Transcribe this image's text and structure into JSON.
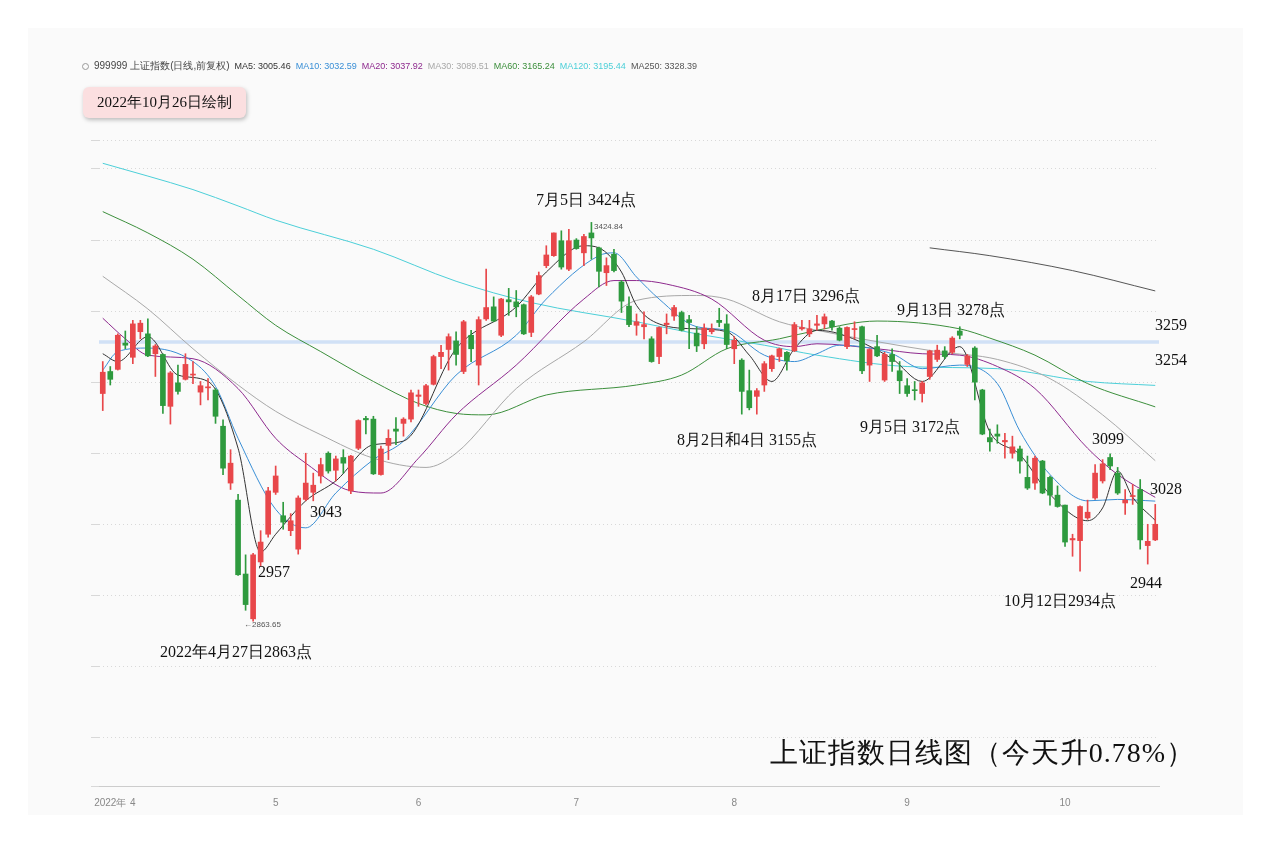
{
  "chart_data": {
    "type": "candlestick",
    "title": "上证指数日线图（今天升0.78%）",
    "subtitle": "999999 上证指数(日线,前复权)",
    "categories": [
      null,
      "2022年",
      null,
      null,
      "4",
      null,
      null,
      null,
      null,
      null,
      null,
      null,
      null,
      null,
      null,
      null,
      null,
      null,
      null,
      null,
      null,
      null,
      null,
      "5",
      null,
      null,
      null,
      null,
      null,
      null,
      null,
      null,
      null,
      null,
      null,
      null,
      null,
      null,
      null,
      null,
      null,
      null,
      "6",
      null,
      null,
      null,
      null,
      null,
      null,
      null,
      null,
      null,
      null,
      null,
      null,
      null,
      null,
      null,
      null,
      null,
      null,
      null,
      null,
      "7",
      null,
      null,
      null,
      null,
      null,
      null,
      null,
      null,
      null,
      null,
      null,
      null,
      null,
      null,
      null,
      null,
      null,
      null,
      null,
      null,
      "8",
      null,
      null,
      null,
      null,
      null,
      null,
      null,
      null,
      null,
      null,
      null,
      null,
      null,
      null,
      null,
      null,
      null,
      null,
      null,
      null,
      null,
      null,
      "9",
      null,
      null,
      null,
      null,
      null,
      null,
      null,
      null,
      null,
      null,
      null,
      null,
      null,
      null,
      null,
      null,
      null,
      null,
      null,
      null,
      "10",
      null,
      null,
      null,
      null,
      null,
      null,
      null,
      null,
      null,
      null,
      null,
      null
    ],
    "ohlc": [
      [
        3184,
        3229,
        3160,
        3214
      ],
      [
        3215,
        3222,
        3196,
        3204
      ],
      [
        3218,
        3268,
        3217,
        3266
      ],
      [
        3255,
        3272,
        3247,
        3252
      ],
      [
        3235,
        3287,
        3226,
        3282
      ],
      [
        3271,
        3287,
        3261,
        3283
      ],
      [
        3268,
        3289,
        3236,
        3237
      ],
      [
        3240,
        3253,
        3208,
        3251
      ],
      [
        3239,
        3240,
        3156,
        3167
      ],
      [
        3166,
        3215,
        3141,
        3213
      ],
      [
        3199,
        3224,
        3183,
        3187
      ],
      [
        3204,
        3240,
        3203,
        3225
      ],
      [
        3210,
        3229,
        3198,
        3211
      ],
      [
        3186,
        3201,
        3168,
        3195
      ],
      [
        3192,
        3205,
        3175,
        3193
      ],
      [
        3189,
        3191,
        3142,
        3152
      ],
      [
        3138,
        3147,
        3070,
        3079
      ],
      [
        3058,
        3105,
        3049,
        3086
      ],
      [
        3034,
        3042,
        2928,
        2929
      ],
      [
        2930,
        2957,
        2879,
        2887
      ],
      [
        2867,
        2959,
        2863.65,
        2957
      ],
      [
        2947,
        2991,
        2941,
        2975
      ],
      [
        2986,
        3052,
        2982,
        3047
      ],
      [
        3045,
        3082,
        3042,
        3068
      ],
      [
        3012,
        3031,
        2993,
        3003
      ],
      [
        2991,
        3015,
        2984,
        3005
      ],
      [
        2965,
        3040,
        2958,
        3037
      ],
      [
        3035,
        3100,
        3033,
        3058
      ],
      [
        3045,
        3072,
        3033,
        3055
      ],
      [
        3068,
        3093,
        3058,
        3084
      ],
      [
        3100,
        3102,
        3072,
        3075
      ],
      [
        3076,
        3096,
        3061,
        3092
      ],
      [
        3094,
        3105,
        3072,
        3086
      ],
      [
        3047,
        3097,
        3043,
        3096
      ],
      [
        3107,
        3147,
        3105,
        3146
      ],
      [
        3149,
        3152,
        3127,
        3147
      ],
      [
        3148,
        3152,
        3070,
        3071
      ],
      [
        3070,
        3110,
        3069,
        3106
      ],
      [
        3111,
        3133,
        3091,
        3121
      ],
      [
        3134,
        3150,
        3112,
        3131
      ],
      [
        3142,
        3150,
        3124,
        3148
      ],
      [
        3148,
        3189,
        3144,
        3185
      ],
      [
        3180,
        3189,
        3166,
        3182
      ],
      [
        3170,
        3197,
        3168,
        3195
      ],
      [
        3197,
        3238,
        3196,
        3236
      ],
      [
        3236,
        3252,
        3219,
        3242
      ],
      [
        3246,
        3268,
        3217,
        3264
      ],
      [
        3258,
        3271,
        3224,
        3239
      ],
      [
        3215,
        3287,
        3212,
        3285
      ],
      [
        3266,
        3273,
        3229,
        3247
      ],
      [
        3224,
        3292,
        3196,
        3288
      ],
      [
        3289,
        3359,
        3287,
        3305
      ],
      [
        3306,
        3320,
        3285,
        3286
      ],
      [
        3266,
        3318,
        3264,
        3317
      ],
      [
        3316,
        3332,
        3294,
        3313
      ],
      [
        3313,
        3329,
        3292,
        3306
      ],
      [
        3309,
        3310,
        3267,
        3268
      ],
      [
        3270,
        3322,
        3264,
        3320
      ],
      [
        3324,
        3355,
        3323,
        3350
      ],
      [
        3364,
        3392,
        3361,
        3379
      ],
      [
        3378,
        3410,
        3377,
        3410
      ],
      [
        3399,
        3413,
        3359,
        3362
      ],
      [
        3359,
        3415,
        3357,
        3399
      ],
      [
        3400,
        3402,
        3387,
        3388
      ],
      [
        3382,
        3408,
        3364,
        3405
      ],
      [
        3410,
        3424.84,
        3373,
        3403
      ],
      [
        3389,
        3390,
        3334,
        3356
      ],
      [
        3354,
        3375,
        3336,
        3364
      ],
      [
        3380,
        3387,
        3355,
        3357
      ],
      [
        3341,
        3343,
        3298,
        3314
      ],
      [
        3307,
        3320,
        3278,
        3281
      ],
      [
        3280,
        3296,
        3266,
        3285
      ],
      [
        3278,
        3299,
        3261,
        3281
      ],
      [
        3261,
        3264,
        3228,
        3229
      ],
      [
        3236,
        3278,
        3226,
        3277
      ],
      [
        3281,
        3296,
        3268,
        3283
      ],
      [
        3293,
        3308,
        3287,
        3305
      ],
      [
        3298,
        3300,
        3272,
        3273
      ],
      [
        3288,
        3294,
        3247,
        3284
      ],
      [
        3269,
        3278,
        3243,
        3251
      ],
      [
        3254,
        3282,
        3247,
        3276
      ],
      [
        3271,
        3282,
        3268,
        3275
      ],
      [
        3287,
        3304,
        3278,
        3284
      ],
      [
        3282,
        3295,
        3247,
        3253
      ],
      [
        3247,
        3264,
        3226,
        3259
      ],
      [
        3231,
        3233,
        3155,
        3187
      ],
      [
        3188,
        3217,
        3161,
        3164
      ],
      [
        3180,
        3191,
        3155,
        3188
      ],
      [
        3196,
        3229,
        3187,
        3226
      ],
      [
        3219,
        3238,
        3215,
        3237
      ],
      [
        3236,
        3248,
        3229,
        3247
      ],
      [
        3242,
        3243,
        3217,
        3230
      ],
      [
        3244,
        3284,
        3243,
        3281
      ],
      [
        3275,
        3287,
        3273,
        3277
      ],
      [
        3268,
        3287,
        3264,
        3275
      ],
      [
        3280,
        3294,
        3273,
        3282
      ],
      [
        3282,
        3296,
        3275,
        3292
      ],
      [
        3286,
        3287,
        3273,
        3278
      ],
      [
        3276,
        3278,
        3258,
        3259
      ],
      [
        3250,
        3278,
        3247,
        3277
      ],
      [
        3274,
        3285,
        3261,
        3275
      ],
      [
        3278,
        3279,
        3212,
        3216
      ],
      [
        3224,
        3247,
        3201,
        3246
      ],
      [
        3250,
        3266,
        3236,
        3237
      ],
      [
        3203,
        3242,
        3201,
        3239
      ],
      [
        3239,
        3247,
        3215,
        3229
      ],
      [
        3216,
        3229,
        3184,
        3202
      ],
      [
        3195,
        3205,
        3180,
        3184
      ],
      [
        3189,
        3201,
        3175,
        3188
      ],
      [
        3184,
        3201,
        3172,
        3199
      ],
      [
        3208,
        3245,
        3204,
        3244
      ],
      [
        3232,
        3252,
        3229,
        3245
      ],
      [
        3244,
        3250,
        3233,
        3236
      ],
      [
        3242,
        3264,
        3240,
        3262
      ],
      [
        3272,
        3278,
        3261,
        3266
      ],
      [
        3225,
        3239,
        3222,
        3237
      ],
      [
        3248,
        3250,
        3175,
        3200
      ],
      [
        3189,
        3190,
        3126,
        3127
      ],
      [
        3122,
        3134,
        3103,
        3116
      ],
      [
        3127,
        3140,
        3114,
        3124
      ],
      [
        3116,
        3128,
        3093,
        3118
      ],
      [
        3100,
        3124,
        3093,
        3109
      ],
      [
        3106,
        3110,
        3072,
        3089
      ],
      [
        3066,
        3096,
        3049,
        3051
      ],
      [
        3058,
        3096,
        3049,
        3093
      ],
      [
        3089,
        3090,
        3043,
        3044
      ],
      [
        3066,
        3068,
        3027,
        3041
      ],
      [
        3041,
        3054,
        3024,
        3025
      ],
      [
        3027,
        3027,
        2969,
        2975
      ],
      [
        2978,
        2986,
        2955,
        2980
      ],
      [
        2977,
        3026,
        2934,
        3025
      ],
      [
        3009,
        3034,
        3007,
        3017
      ],
      [
        3037,
        3084,
        3035,
        3072
      ],
      [
        3061,
        3091,
        3058,
        3085
      ],
      [
        3094,
        3099,
        3077,
        3082
      ],
      [
        3072,
        3080,
        3042,
        3044
      ],
      [
        3030,
        3049,
        3014,
        3034
      ],
      [
        3039,
        3056,
        3028,
        3040
      ],
      [
        3049,
        3063,
        2965,
        2978
      ],
      [
        2970,
        3000,
        2944,
        2976
      ],
      [
        2978,
        3028,
        2977,
        3000
      ]
    ],
    "series": [
      {
        "name": "MA5: 3005.46",
        "type": "line",
        "color": "#333333",
        "values": [
          3240,
          null,
          3229,
          null,
          null,
          null,
          3264,
          null,
          null,
          null,
          3210,
          null,
          null,
          null,
          3201,
          null,
          null,
          null,
          3107,
          null,
          null,
          2961,
          null,
          2986,
          null,
          null,
          null,
          3033,
          null,
          null,
          null,
          3061,
          null,
          null,
          null,
          null,
          3112,
          null,
          null,
          null,
          3117,
          null,
          null,
          null,
          null,
          null,
          null,
          3247,
          null,
          null,
          null,
          null,
          null,
          null,
          null,
          3306,
          null,
          null,
          null,
          3355,
          null,
          null,
          null,
          null,
          3392,
          null,
          3389,
          null,
          null,
          3355,
          null,
          3308,
          null,
          null,
          3282,
          null,
          null,
          null,
          null,
          3275,
          null,
          null,
          null,
          3271,
          null,
          null,
          3238,
          null,
          null,
          3201,
          null,
          null,
          3247,
          null,
          null,
          3273,
          null,
          null,
          3268,
          null,
          null,
          null,
          null,
          null,
          null,
          3233,
          null,
          null,
          null,
          3201,
          null,
          null,
          null,
          null,
          3250,
          null,
          null,
          null,
          3130,
          null,
          null,
          null,
          3098,
          null,
          null,
          null,
          3042,
          null,
          null,
          null,
          null,
          3005,
          null,
          3023,
          null,
          3075,
          null,
          3038,
          null,
          null,
          3005.46
        ]
      },
      {
        "name": "MA10: 3032.59",
        "type": "line",
        "color": "#3a8fd6",
        "values": [
          3217,
          null,
          3243,
          null,
          null,
          null,
          3248,
          null,
          null,
          null,
          null,
          null,
          3229,
          null,
          null,
          3194,
          null,
          null,
          3121,
          null,
          null,
          null,
          null,
          3021,
          null,
          null,
          null,
          2995,
          null,
          null,
          null,
          3044,
          null,
          null,
          null,
          null,
          3091,
          null,
          null,
          null,
          3117,
          null,
          null,
          null,
          null,
          null,
          null,
          3210,
          null,
          null,
          null,
          null,
          null,
          null,
          null,
          3266,
          null,
          null,
          null,
          3317,
          null,
          null,
          null,
          null,
          null,
          null,
          3378,
          null,
          3382,
          null,
          null,
          3348,
          null,
          null,
          3317,
          null,
          null,
          null,
          null,
          3278,
          null,
          null,
          null,
          3273,
          null,
          null,
          null,
          null,
          3238,
          null,
          null,
          null,
          3229,
          null,
          null,
          3240,
          null,
          null,
          3252,
          null,
          null,
          null,
          null,
          null,
          null,
          3240,
          null,
          null,
          null,
          3219,
          null,
          null,
          null,
          null,
          3224,
          null,
          null,
          null,
          null,
          3198,
          null,
          null,
          3131,
          null,
          null,
          null,
          3070,
          null,
          null,
          null,
          null,
          3033,
          null,
          null,
          null,
          3035,
          null,
          null,
          null,
          null,
          3032.59
        ]
      },
      {
        "name": "MA20: 3037.92",
        "type": "line",
        "color": "#8e2a8e",
        "values": [
          3290,
          null,
          null,
          3261,
          null,
          null,
          3238,
          null,
          null,
          null,
          null,
          null,
          3233,
          null,
          null,
          null,
          null,
          null,
          3191,
          null,
          null,
          null,
          null,
          3121,
          null,
          null,
          null,
          3086,
          null,
          null,
          null,
          null,
          null,
          3047,
          null,
          null,
          null,
          3044,
          null,
          null,
          null,
          null,
          3093,
          null,
          null,
          null,
          null,
          3154,
          null,
          null,
          null,
          null,
          null,
          null,
          null,
          3224,
          null,
          null,
          null,
          null,
          null,
          null,
          null,
          null,
          3317,
          null,
          null,
          null,
          3343,
          null,
          null,
          3343,
          null,
          null,
          null,
          3338,
          null,
          null,
          null,
          null,
          null,
          3317,
          null,
          null,
          null,
          null,
          null,
          null,
          3259,
          null,
          null,
          null,
          3250,
          null,
          null,
          3254,
          null,
          null,
          null,
          null,
          null,
          null,
          null,
          3247,
          null,
          null,
          null,
          null,
          null,
          3240,
          null,
          null,
          null,
          null,
          3238,
          null,
          null,
          null,
          null,
          3222,
          null,
          null,
          null,
          null,
          3191,
          null,
          null,
          null,
          null,
          null,
          null,
          3107,
          null,
          null,
          null,
          3070,
          null,
          null,
          null,
          null,
          3037.92
        ]
      },
      {
        "name": "MA30: 3089.51",
        "type": "line",
        "color": "#a8a8a8",
        "values": [
          3349,
          null,
          null,
          null,
          null,
          null,
          3303,
          null,
          null,
          null,
          null,
          null,
          3247,
          null,
          null,
          null,
          null,
          null,
          3196,
          null,
          null,
          null,
          null,
          3159,
          null,
          null,
          null,
          null,
          null,
          3126,
          null,
          null,
          null,
          null,
          null,
          null,
          3093,
          null,
          null,
          null,
          null,
          null,
          null,
          3080,
          null,
          null,
          null,
          3100,
          null,
          null,
          null,
          null,
          null,
          null,
          null,
          3191,
          null,
          null,
          null,
          null,
          null,
          null,
          null,
          null,
          3257,
          null,
          null,
          null,
          null,
          null,
          null,
          3315,
          null,
          null,
          null,
          null,
          null,
          null,
          null,
          3322,
          null,
          null,
          null,
          3317,
          null,
          null,
          null,
          null,
          null,
          null,
          3285,
          null,
          null,
          null,
          null,
          3273,
          null,
          null,
          null,
          null,
          null,
          null,
          null,
          3257,
          null,
          null,
          null,
          null,
          null,
          null,
          null,
          3243,
          null,
          null,
          null,
          null,
          null,
          null,
          null,
          3232,
          null,
          null,
          null,
          null,
          null,
          null,
          3205,
          null,
          null,
          null,
          null,
          null,
          null,
          3154,
          null,
          null,
          null,
          null,
          null,
          null,
          3089.51
        ]
      },
      {
        "name": "MA60: 3165.24",
        "type": "line",
        "color": "#3c8f3c",
        "values": [
          3440,
          null,
          null,
          null,
          null,
          null,
          3410,
          null,
          null,
          null,
          null,
          null,
          3373,
          null,
          null,
          null,
          null,
          null,
          3322,
          null,
          null,
          null,
          null,
          3280,
          null,
          null,
          null,
          null,
          null,
          3243,
          null,
          null,
          null,
          null,
          null,
          null,
          3201,
          null,
          null,
          null,
          null,
          null,
          3170,
          null,
          null,
          null,
          null,
          3156,
          null,
          null,
          null,
          3154,
          null,
          null,
          null,
          null,
          null,
          null,
          null,
          3182,
          null,
          null,
          null,
          null,
          null,
          null,
          null,
          null,
          null,
          null,
          null,
          3196,
          null,
          null,
          null,
          null,
          null,
          3210,
          null,
          null,
          null,
          null,
          null,
          3247,
          null,
          null,
          null,
          null,
          null,
          null,
          3261,
          null,
          null,
          null,
          null,
          3273,
          null,
          null,
          null,
          null,
          null,
          null,
          null,
          3286,
          null,
          null,
          null,
          null,
          null,
          null,
          null,
          null,
          null,
          null,
          3275,
          null,
          null,
          null,
          3262,
          null,
          null,
          null,
          null,
          null,
          3238,
          null,
          null,
          null,
          null,
          null,
          null,
          3198,
          null,
          null,
          null,
          null,
          null,
          null,
          null,
          null,
          3165.24
        ]
      },
      {
        "name": "MA120: 3195.44",
        "type": "line",
        "color": "#4ccfd8",
        "values": [
          3508,
          null,
          null,
          null,
          null,
          null,
          3490,
          null,
          null,
          null,
          null,
          null,
          3471,
          null,
          null,
          null,
          null,
          null,
          3448,
          null,
          null,
          null,
          null,
          3428,
          null,
          null,
          null,
          null,
          null,
          null,
          null,
          null,
          null,
          null,
          null,
          null,
          3387,
          null,
          null,
          null,
          null,
          null,
          null,
          null,
          null,
          null,
          null,
          3342,
          null,
          null,
          null,
          null,
          null,
          null,
          null,
          null,
          null,
          3312,
          null,
          null,
          null,
          null,
          null,
          null,
          null,
          null,
          null,
          null,
          null,
          null,
          null,
          3285,
          null,
          null,
          null,
          null,
          null,
          null,
          null,
          3268,
          null,
          null,
          null,
          null,
          null,
          null,
          null,
          null,
          3252,
          null,
          null,
          null,
          null,
          null,
          null,
          3238,
          null,
          null,
          null,
          null,
          null,
          null,
          null,
          null,
          null,
          null,
          null,
          3222,
          null,
          null,
          null,
          null,
          null,
          null,
          null,
          null,
          null,
          null,
          null,
          3219,
          null,
          null,
          null,
          null,
          null,
          null,
          null,
          null,
          null,
          null,
          null,
          3201,
          null,
          null,
          null,
          null,
          null,
          null,
          null,
          null,
          3195.44
        ]
      },
      {
        "name": "MA250: 3328.39",
        "type": "line",
        "color": "#555555",
        "values": [
          null,
          null,
          null,
          null,
          null,
          null,
          null,
          null,
          null,
          null,
          null,
          null,
          null,
          null,
          null,
          null,
          null,
          null,
          null,
          null,
          null,
          null,
          null,
          null,
          null,
          null,
          null,
          null,
          null,
          null,
          null,
          null,
          null,
          null,
          null,
          null,
          null,
          null,
          null,
          null,
          null,
          null,
          null,
          null,
          null,
          null,
          null,
          null,
          null,
          null,
          null,
          null,
          null,
          null,
          null,
          null,
          null,
          null,
          null,
          null,
          null,
          null,
          null,
          null,
          null,
          null,
          null,
          null,
          null,
          null,
          null,
          null,
          null,
          null,
          null,
          null,
          null,
          null,
          null,
          null,
          null,
          null,
          null,
          null,
          null,
          null,
          null,
          null,
          null,
          null,
          null,
          null,
          null,
          null,
          null,
          null,
          null,
          null,
          null,
          null,
          null,
          null,
          null,
          null,
          null,
          null,
          null,
          null,
          null,
          null,
          3389,
          null,
          null,
          null,
          null,
          null,
          null,
          null,
          3378,
          null,
          null,
          null,
          null,
          null,
          null,
          null,
          null,
          null,
          null,
          3357,
          null,
          null,
          null,
          null,
          null,
          null,
          null,
          null,
          null,
          null,
          3328.39
        ]
      }
    ],
    "bands": [
      {
        "axis": "y",
        "from": 3254,
        "to": 3259,
        "color": "#c9dcf4"
      }
    ],
    "annotations": [
      "7月5日 3424点",
      "3424.84",
      "←2863.65",
      "2022年4月27日2863点",
      "2957",
      "3043",
      "8月17日 3296点",
      "9月13日 3278点",
      "8月2日和4日 3155点",
      "9月5日 3172点",
      "3259",
      "3254",
      "3099",
      "3028",
      "2944",
      "10月12日2934点",
      "2022年10月26日绘制"
    ],
    "legend": "top left",
    "grid": "y",
    "tick_labels": "x"
  }
}
